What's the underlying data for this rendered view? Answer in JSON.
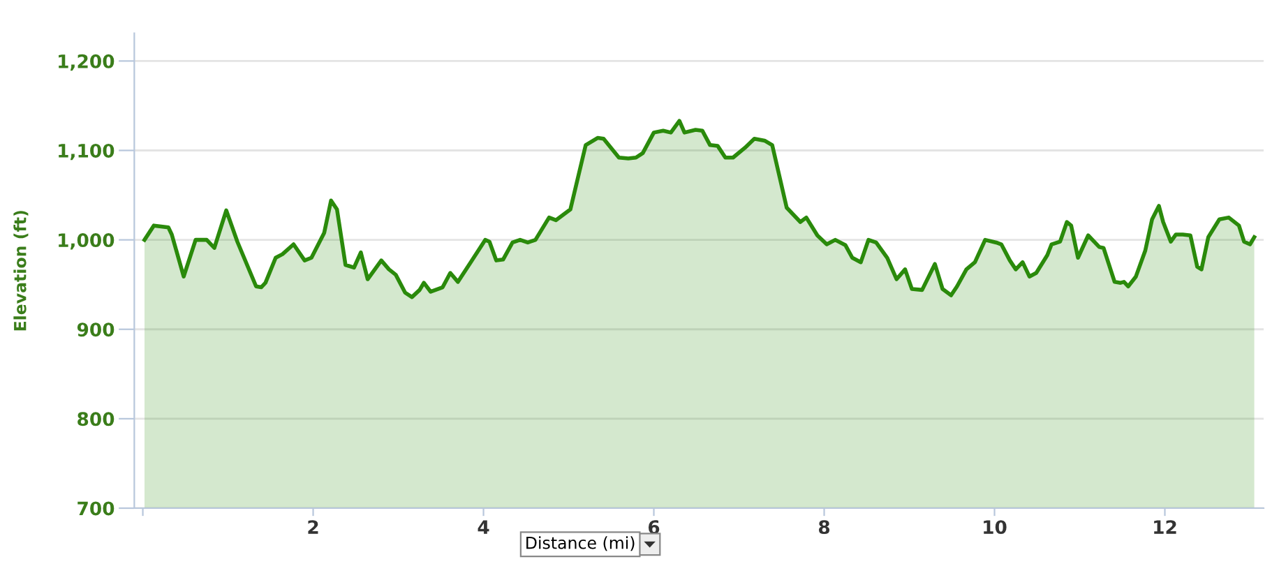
{
  "chart_data": {
    "type": "area",
    "ylabel": "Elevation (ft)",
    "xlabel": "Distance (mi)",
    "xlim": [
      -0.1,
      13.16
    ],
    "xticks": [
      {
        "value": 0,
        "label": null
      },
      2,
      4,
      6,
      8,
      10,
      12
    ],
    "ylim": [
      700,
      1231
    ],
    "yticks": [
      {
        "value": 700,
        "label": "700"
      },
      {
        "value": 800,
        "label": "800"
      },
      {
        "value": 900,
        "label": "900"
      },
      {
        "value": 1000,
        "label": "1,000"
      },
      {
        "value": 1100,
        "label": "1,100"
      },
      {
        "value": 1200,
        "label": "1,200"
      }
    ],
    "grid": "y",
    "legend": false,
    "series": [
      {
        "color": "#2a8a0b",
        "x": [
          0.02,
          0.13,
          0.3,
          0.34,
          0.48,
          0.62,
          0.75,
          0.84,
          0.98,
          1.11,
          1.33,
          1.39,
          1.44,
          1.56,
          1.64,
          1.77,
          1.9,
          1.98,
          2.13,
          2.21,
          2.28,
          2.38,
          2.48,
          2.56,
          2.64,
          2.8,
          2.89,
          2.97,
          3.08,
          3.16,
          3.25,
          3.3,
          3.38,
          3.52,
          3.61,
          3.7,
          3.85,
          4.02,
          4.07,
          4.15,
          4.23,
          4.34,
          4.43,
          4.52,
          4.61,
          4.77,
          4.85,
          5.02,
          5.2,
          5.34,
          5.41,
          5.59,
          5.7,
          5.79,
          5.87,
          6.0,
          6.11,
          6.2,
          6.3,
          6.36,
          6.49,
          6.57,
          6.66,
          6.75,
          6.84,
          6.93,
          7.07,
          7.18,
          7.3,
          7.39,
          7.56,
          7.72,
          7.79,
          7.92,
          8.03,
          8.13,
          8.25,
          8.33,
          8.43,
          8.52,
          8.61,
          8.74,
          8.85,
          8.95,
          9.03,
          9.15,
          9.3,
          9.39,
          9.49,
          9.56,
          9.67,
          9.77,
          9.89,
          10.02,
          10.08,
          10.18,
          10.25,
          10.33,
          10.41,
          10.49,
          10.62,
          10.67,
          10.77,
          10.85,
          10.9,
          10.98,
          11.1,
          11.23,
          11.28,
          11.41,
          11.48,
          11.52,
          11.57,
          11.66,
          11.77,
          11.85,
          11.93,
          11.98,
          12.07,
          12.13,
          12.21,
          12.3,
          12.38,
          12.43,
          12.51,
          12.64,
          12.75,
          12.87,
          12.93,
          13.0,
          13.05
        ],
        "values": [
          1000,
          1016,
          1014,
          1006,
          959,
          1000,
          1000,
          991,
          1033,
          998,
          948,
          947,
          952,
          980,
          984,
          995,
          977,
          980,
          1008,
          1044,
          1034,
          972,
          969,
          986,
          956,
          977,
          967,
          961,
          941,
          936,
          944,
          952,
          942,
          947,
          963,
          953,
          975,
          1000,
          998,
          977,
          978,
          997,
          1000,
          997,
          1000,
          1025,
          1022,
          1034,
          1106,
          1114,
          1113,
          1092,
          1091,
          1092,
          1097,
          1120,
          1122,
          1120,
          1133,
          1120,
          1123,
          1122,
          1106,
          1105,
          1092,
          1092,
          1103,
          1113,
          1111,
          1106,
          1036,
          1020,
          1025,
          1005,
          995,
          1000,
          994,
          980,
          975,
          1000,
          997,
          980,
          956,
          967,
          945,
          944,
          973,
          945,
          938,
          948,
          967,
          975,
          1000,
          997,
          995,
          977,
          967,
          975,
          959,
          963,
          983,
          995,
          998,
          1020,
          1016,
          980,
          1005,
          992,
          991,
          953,
          952,
          953,
          948,
          959,
          988,
          1023,
          1038,
          1020,
          998,
          1006,
          1006,
          1005,
          970,
          967,
          1003,
          1023,
          1025,
          1016,
          998,
          995,
          1003
        ]
      }
    ]
  }
}
